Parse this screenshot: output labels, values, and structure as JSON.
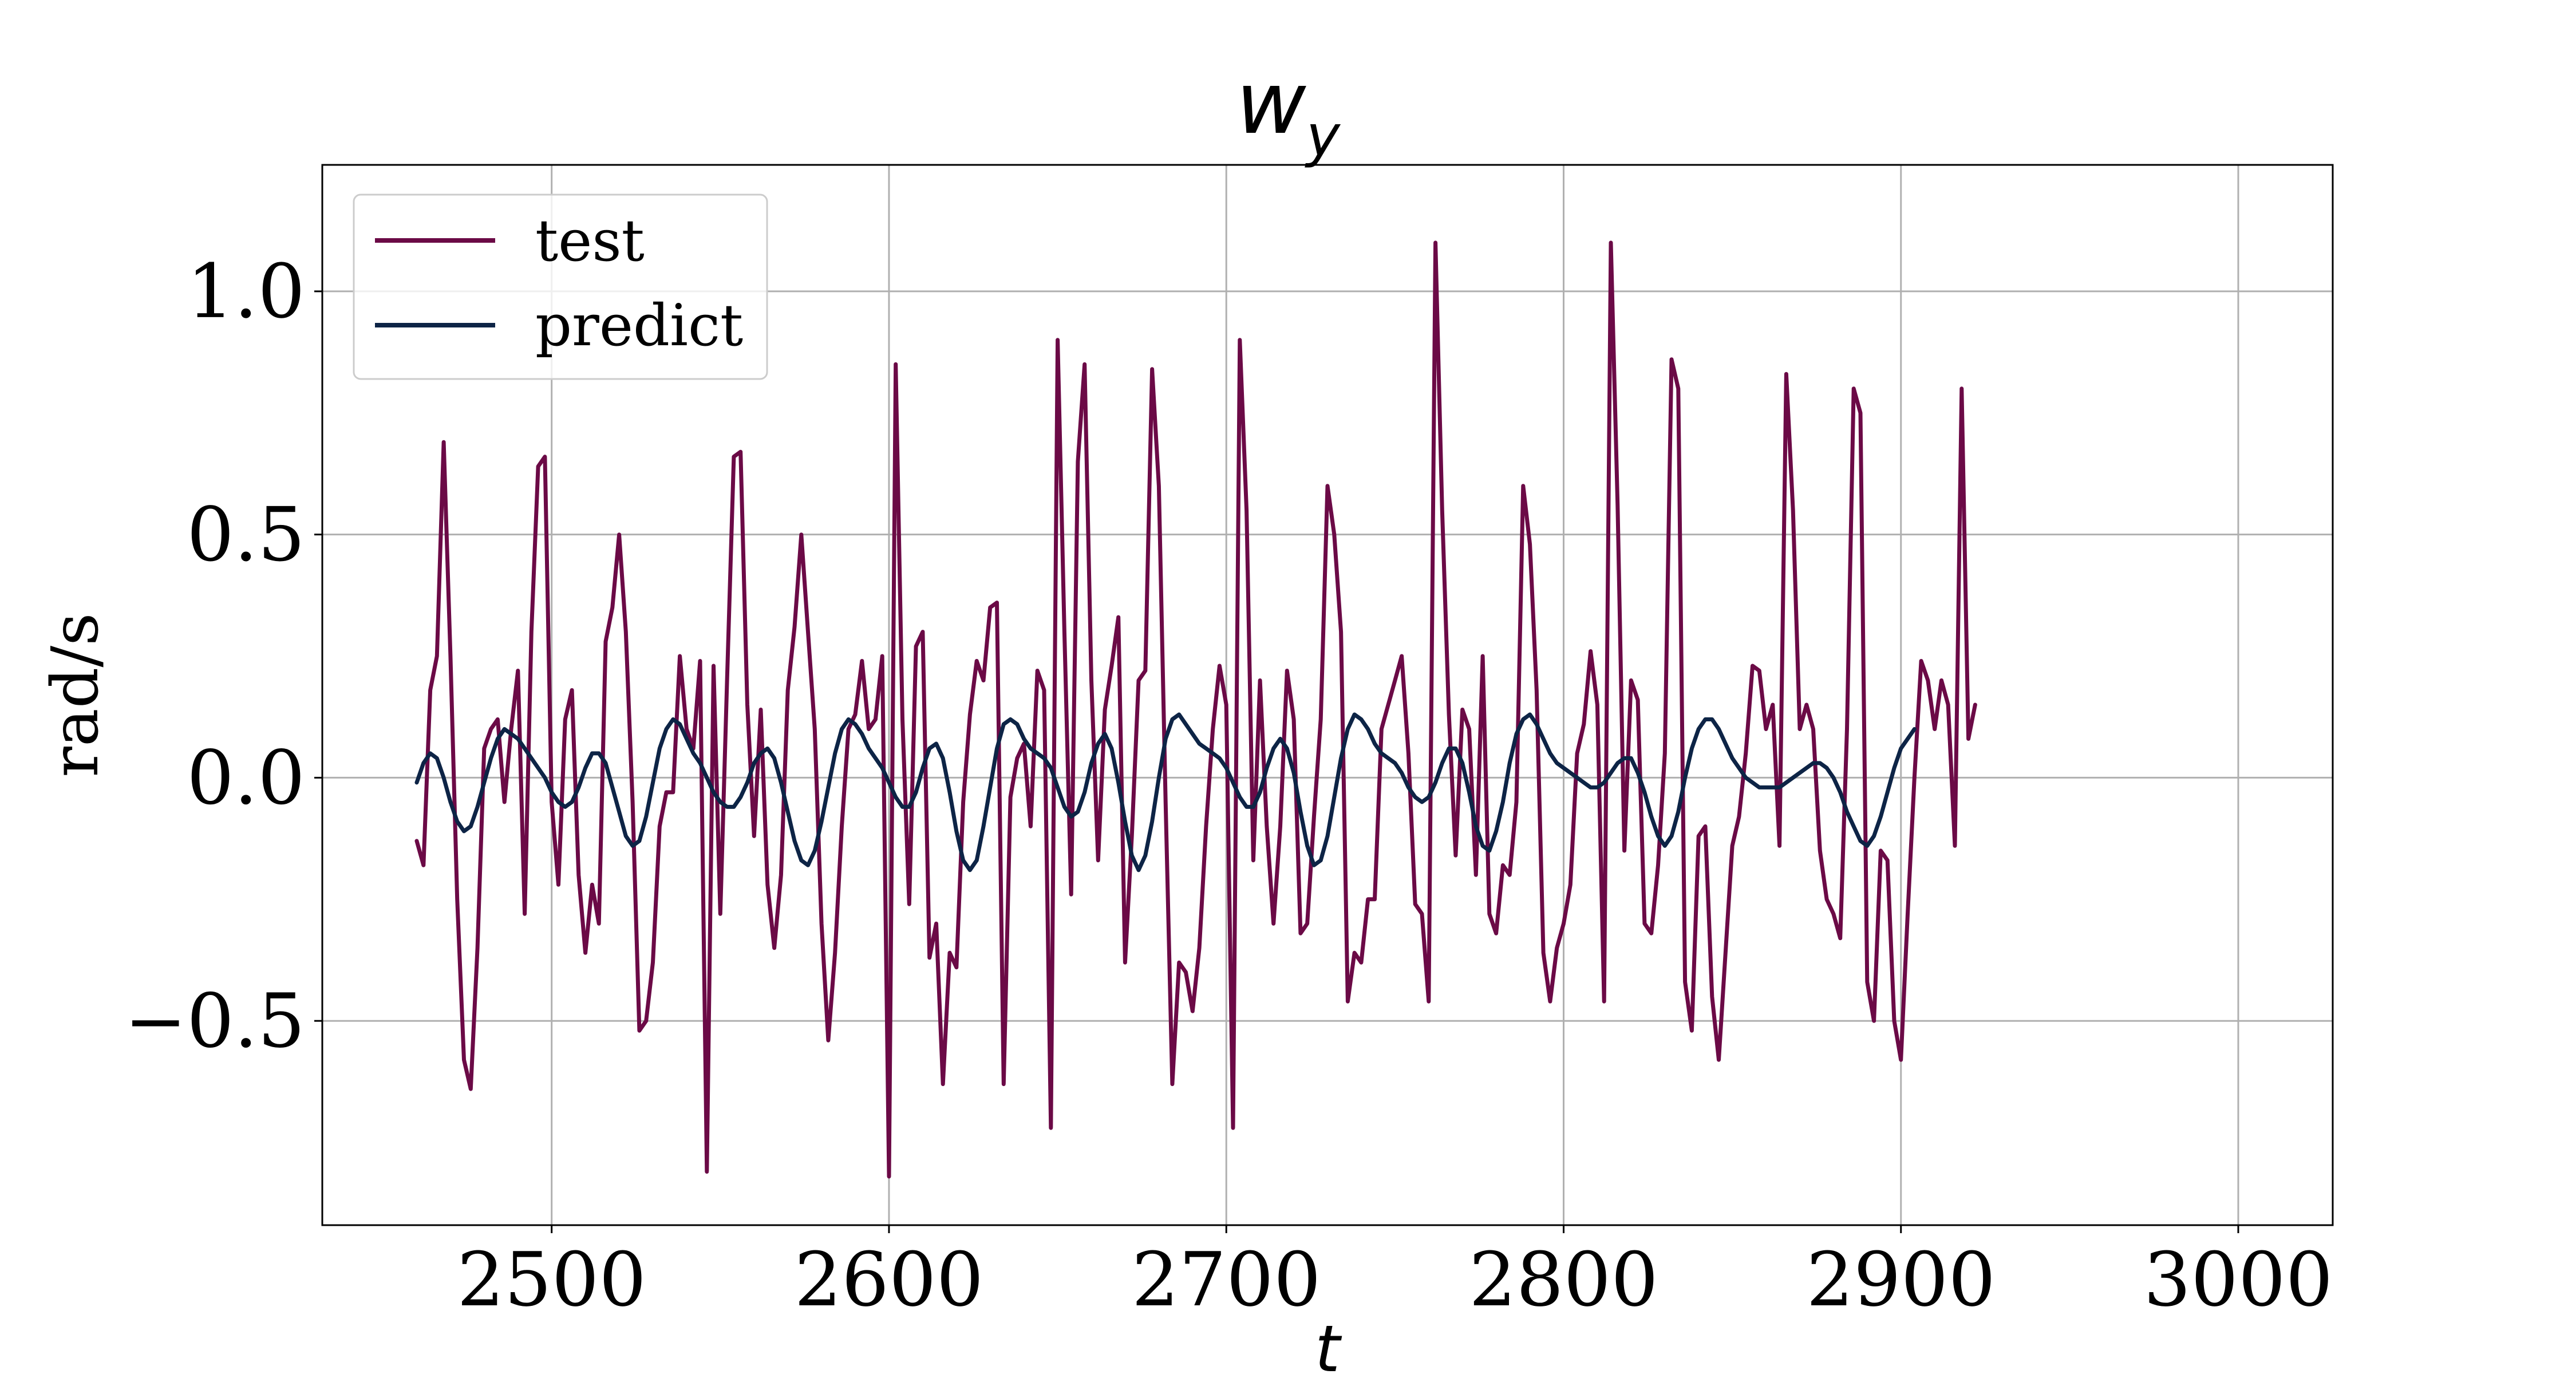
{
  "chart_data": {
    "type": "line",
    "title": "w",
    "title_subscript": "y",
    "xlabel": "t",
    "ylabel": "rad/s",
    "xlim": [
      2432,
      3028
    ],
    "ylim": [
      -0.92,
      1.26
    ],
    "x_ticks": [
      2500,
      2600,
      2700,
      2800,
      2900,
      3000
    ],
    "x_tick_labels": [
      "2500",
      "2600",
      "2700",
      "2800",
      "2900",
      "3000"
    ],
    "y_ticks": [
      -0.5,
      0.0,
      0.5,
      1.0
    ],
    "y_tick_labels": [
      "−0.5",
      "0.0",
      "0.5",
      "1.0"
    ],
    "grid": true,
    "legend_position": "top-left",
    "x_start": 2460,
    "x_step": 2,
    "series": [
      {
        "name": "test",
        "color": "#6b0a46",
        "values": [
          -0.13,
          -0.18,
          0.18,
          0.25,
          0.69,
          0.25,
          -0.25,
          -0.58,
          -0.64,
          -0.35,
          0.06,
          0.1,
          0.12,
          -0.05,
          0.1,
          0.22,
          -0.28,
          0.3,
          0.64,
          0.66,
          -0.05,
          -0.22,
          0.12,
          0.18,
          -0.2,
          -0.36,
          -0.22,
          -0.3,
          0.28,
          0.35,
          0.5,
          0.3,
          -0.05,
          -0.52,
          -0.5,
          -0.38,
          -0.1,
          -0.03,
          -0.03,
          0.25,
          0.1,
          0.06,
          0.24,
          -0.81,
          0.23,
          -0.28,
          0.2,
          0.66,
          0.67,
          0.15,
          -0.12,
          0.14,
          -0.22,
          -0.35,
          -0.2,
          0.18,
          0.31,
          0.5,
          0.3,
          0.1,
          -0.3,
          -0.54,
          -0.36,
          -0.1,
          0.1,
          0.13,
          0.24,
          0.1,
          0.12,
          0.25,
          -0.82,
          0.85,
          0.12,
          -0.26,
          0.27,
          0.3,
          -0.37,
          -0.3,
          -0.63,
          -0.36,
          -0.39,
          -0.05,
          0.13,
          0.24,
          0.2,
          0.35,
          0.36,
          -0.63,
          -0.04,
          0.04,
          0.07,
          -0.1,
          0.22,
          0.18,
          -0.72,
          0.9,
          0.3,
          -0.24,
          0.65,
          0.85,
          0.2,
          -0.17,
          0.14,
          0.23,
          0.33,
          -0.38,
          -0.12,
          0.2,
          0.22,
          0.84,
          0.6,
          -0.05,
          -0.63,
          -0.38,
          -0.4,
          -0.48,
          -0.35,
          -0.1,
          0.1,
          0.23,
          0.15,
          -0.72,
          0.9,
          0.55,
          -0.17,
          0.2,
          -0.1,
          -0.3,
          -0.1,
          0.22,
          0.12,
          -0.32,
          -0.3,
          -0.08,
          0.12,
          0.6,
          0.5,
          0.3,
          -0.46,
          -0.36,
          -0.38,
          -0.25,
          -0.25,
          0.1,
          0.15,
          0.2,
          0.25,
          0.05,
          -0.26,
          -0.28,
          -0.46,
          1.1,
          0.55,
          0.13,
          -0.16,
          0.14,
          0.1,
          -0.2,
          0.25,
          -0.28,
          -0.32,
          -0.18,
          -0.2,
          -0.05,
          0.6,
          0.48,
          0.18,
          -0.36,
          -0.46,
          -0.35,
          -0.3,
          -0.22,
          0.05,
          0.11,
          0.26,
          0.15,
          -0.46,
          1.1,
          0.56,
          -0.15,
          0.2,
          0.16,
          -0.3,
          -0.32,
          -0.18,
          0.05,
          0.86,
          0.8,
          -0.42,
          -0.52,
          -0.12,
          -0.1,
          -0.45,
          -0.58,
          -0.36,
          -0.14,
          -0.08,
          0.05,
          0.23,
          0.22,
          0.1,
          0.15,
          -0.14,
          0.83,
          0.55,
          0.1,
          0.15,
          0.1,
          -0.15,
          -0.25,
          -0.28,
          -0.33,
          0.1,
          0.8,
          0.75,
          -0.42,
          -0.5,
          -0.15,
          -0.17,
          -0.5,
          -0.58,
          -0.28,
          0.0,
          0.24,
          0.2,
          0.1,
          0.2,
          0.15,
          -0.14,
          0.8,
          0.08,
          0.15
        ]
      },
      {
        "name": "predict",
        "color": "#0d2446",
        "values": [
          -0.01,
          0.03,
          0.05,
          0.04,
          0.0,
          -0.05,
          -0.09,
          -0.11,
          -0.1,
          -0.06,
          -0.01,
          0.04,
          0.08,
          0.1,
          0.09,
          0.08,
          0.06,
          0.04,
          0.02,
          0.0,
          -0.03,
          -0.05,
          -0.06,
          -0.05,
          -0.02,
          0.02,
          0.05,
          0.05,
          0.03,
          -0.02,
          -0.07,
          -0.12,
          -0.14,
          -0.13,
          -0.08,
          -0.01,
          0.06,
          0.1,
          0.12,
          0.11,
          0.08,
          0.05,
          0.03,
          0.0,
          -0.03,
          -0.05,
          -0.06,
          -0.06,
          -0.04,
          -0.01,
          0.03,
          0.05,
          0.06,
          0.04,
          -0.01,
          -0.07,
          -0.13,
          -0.17,
          -0.18,
          -0.15,
          -0.09,
          -0.02,
          0.05,
          0.1,
          0.12,
          0.11,
          0.09,
          0.06,
          0.04,
          0.02,
          -0.01,
          -0.04,
          -0.06,
          -0.06,
          -0.03,
          0.02,
          0.06,
          0.07,
          0.04,
          -0.03,
          -0.11,
          -0.17,
          -0.19,
          -0.17,
          -0.1,
          -0.02,
          0.06,
          0.11,
          0.12,
          0.11,
          0.08,
          0.06,
          0.05,
          0.04,
          0.02,
          -0.02,
          -0.06,
          -0.08,
          -0.07,
          -0.03,
          0.03,
          0.07,
          0.09,
          0.06,
          -0.01,
          -0.09,
          -0.16,
          -0.19,
          -0.16,
          -0.09,
          0.0,
          0.08,
          0.12,
          0.13,
          0.11,
          0.09,
          0.07,
          0.06,
          0.05,
          0.04,
          0.02,
          -0.01,
          -0.04,
          -0.06,
          -0.06,
          -0.03,
          0.02,
          0.06,
          0.08,
          0.06,
          0.01,
          -0.07,
          -0.14,
          -0.18,
          -0.17,
          -0.12,
          -0.04,
          0.04,
          0.1,
          0.13,
          0.12,
          0.1,
          0.07,
          0.05,
          0.04,
          0.03,
          0.01,
          -0.02,
          -0.04,
          -0.05,
          -0.04,
          -0.01,
          0.03,
          0.06,
          0.06,
          0.03,
          -0.03,
          -0.1,
          -0.14,
          -0.15,
          -0.11,
          -0.05,
          0.03,
          0.09,
          0.12,
          0.13,
          0.11,
          0.08,
          0.05,
          0.03,
          0.02,
          0.01,
          0.0,
          -0.01,
          -0.02,
          -0.02,
          -0.01,
          0.01,
          0.03,
          0.04,
          0.04,
          0.01,
          -0.03,
          -0.08,
          -0.12,
          -0.14,
          -0.12,
          -0.07,
          0.0,
          0.06,
          0.1,
          0.12,
          0.12,
          0.1,
          0.07,
          0.04,
          0.02,
          0.0,
          -0.01,
          -0.02,
          -0.02,
          -0.02,
          -0.02,
          -0.01,
          0.0,
          0.01,
          0.02,
          0.03,
          0.03,
          0.02,
          0.0,
          -0.03,
          -0.07,
          -0.1,
          -0.13,
          -0.14,
          -0.12,
          -0.08,
          -0.03,
          0.02,
          0.06,
          0.08,
          0.1
        ]
      }
    ]
  }
}
